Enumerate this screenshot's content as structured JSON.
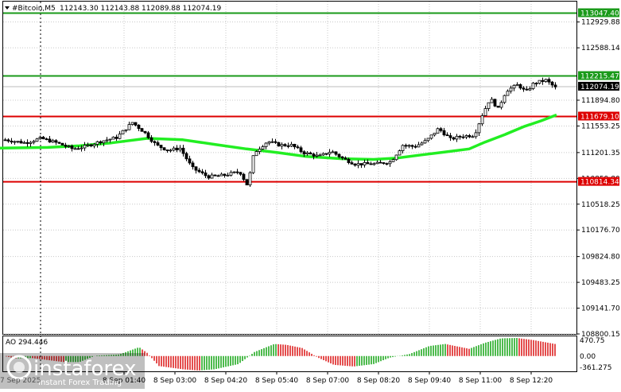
{
  "header": {
    "symbol": "#Bitcoin,M5",
    "ohlc": "112143.30 112143.88 112089.88 112074.19"
  },
  "ao_panel": {
    "label": "AO 294.446",
    "scale": [
      "470.75",
      "0.00",
      "-361.275"
    ]
  },
  "watermark": {
    "brand": "instaforex",
    "tagline": "Instant Forex Trading",
    "date_fragment": "7 Sep 2025"
  },
  "chart_data": {
    "type": "candlestick",
    "timeframe": "M5",
    "ylim": [
      108800,
      113200
    ],
    "price_ticks": [
      "112929.88",
      "112588.14",
      "111894.80",
      "111553.25",
      "111201.35",
      "110859.80",
      "110518.25",
      "110176.70",
      "109824.80",
      "109483.25",
      "109141.70",
      "108800.15"
    ],
    "time_ticks": [
      "8 Sep 01:40",
      "8 Sep 03:00",
      "8 Sep 04:20",
      "8 Sep 05:40",
      "8 Sep 07:00",
      "8 Sep 08:20",
      "8 Sep 09:40",
      "8 Sep 11:00",
      "8 Sep 12:20"
    ],
    "levels": [
      {
        "price": 113047.4,
        "label": "113047.40",
        "color": "#1a9a1a"
      },
      {
        "price": 112215.47,
        "label": "112215.47",
        "color": "#1a9a1a"
      },
      {
        "price": 111679.1,
        "label": "111679.10",
        "color": "#dd0000"
      },
      {
        "price": 110814.34,
        "label": "110814.34",
        "color": "#dd0000"
      }
    ],
    "current_price": {
      "price": 112074.19,
      "label": "112074.19"
    },
    "moving_average_color": "#22ee22",
    "ma_points": [
      [
        0,
        111260
      ],
      [
        60,
        111270
      ],
      [
        100,
        111290
      ],
      [
        140,
        111330
      ],
      [
        185,
        111390
      ],
      [
        230,
        111370
      ],
      [
        270,
        111310
      ],
      [
        310,
        111250
      ],
      [
        350,
        111200
      ],
      [
        385,
        111150
      ],
      [
        430,
        111120
      ],
      [
        470,
        111110
      ],
      [
        500,
        111130
      ],
      [
        530,
        111170
      ],
      [
        560,
        111210
      ],
      [
        590,
        111250
      ],
      [
        610,
        111340
      ],
      [
        635,
        111440
      ],
      [
        660,
        111550
      ],
      [
        680,
        111620
      ],
      [
        700,
        111700
      ]
    ],
    "price_path": [
      [
        5,
        111370
      ],
      [
        30,
        111330
      ],
      [
        50,
        111390
      ],
      [
        70,
        111330
      ],
      [
        90,
        111250
      ],
      [
        105,
        111280
      ],
      [
        125,
        111350
      ],
      [
        145,
        111400
      ],
      [
        165,
        111600
      ],
      [
        180,
        111470
      ],
      [
        195,
        111300
      ],
      [
        210,
        111230
      ],
      [
        225,
        111260
      ],
      [
        240,
        111000
      ],
      [
        260,
        110880
      ],
      [
        280,
        110900
      ],
      [
        300,
        110950
      ],
      [
        310,
        110760
      ],
      [
        318,
        111200
      ],
      [
        335,
        111350
      ],
      [
        350,
        111300
      ],
      [
        365,
        111300
      ],
      [
        380,
        111200
      ],
      [
        400,
        111150
      ],
      [
        415,
        111220
      ],
      [
        430,
        111120
      ],
      [
        445,
        111050
      ],
      [
        470,
        111050
      ],
      [
        490,
        111080
      ],
      [
        505,
        111300
      ],
      [
        520,
        111280
      ],
      [
        535,
        111360
      ],
      [
        550,
        111520
      ],
      [
        565,
        111380
      ],
      [
        580,
        111420
      ],
      [
        595,
        111430
      ],
      [
        605,
        111700
      ],
      [
        615,
        111920
      ],
      [
        625,
        111780
      ],
      [
        635,
        112020
      ],
      [
        650,
        112100
      ],
      [
        660,
        112000
      ],
      [
        670,
        112120
      ],
      [
        685,
        112160
      ],
      [
        697,
        112060
      ]
    ],
    "ao_range": [
      -361.275,
      470.75
    ],
    "ao_points": [
      [
        5,
        0
      ],
      [
        20,
        -60
      ],
      [
        40,
        -50
      ],
      [
        60,
        -100
      ],
      [
        80,
        -150
      ],
      [
        100,
        -150
      ],
      [
        120,
        10
      ],
      [
        150,
        40
      ],
      [
        175,
        220
      ],
      [
        185,
        80
      ],
      [
        200,
        -250
      ],
      [
        230,
        -330
      ],
      [
        250,
        -361
      ],
      [
        270,
        -330
      ],
      [
        300,
        -200
      ],
      [
        320,
        100
      ],
      [
        345,
        300
      ],
      [
        360,
        280
      ],
      [
        380,
        200
      ],
      [
        400,
        -40
      ],
      [
        420,
        -220
      ],
      [
        445,
        -260
      ],
      [
        470,
        -200
      ],
      [
        490,
        -40
      ],
      [
        515,
        50
      ],
      [
        540,
        250
      ],
      [
        560,
        300
      ],
      [
        590,
        180
      ],
      [
        610,
        330
      ],
      [
        630,
        440
      ],
      [
        650,
        450
      ],
      [
        670,
        400
      ],
      [
        700,
        294
      ]
    ]
  }
}
